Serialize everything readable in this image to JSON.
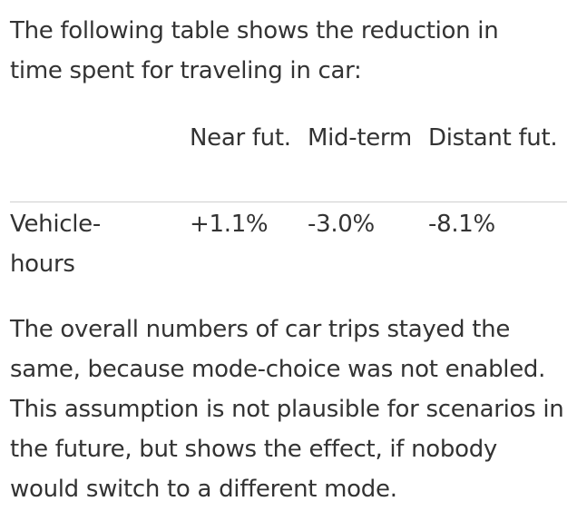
{
  "intro_text": "The following table shows the reduction in time spent for traveling in car:",
  "table": {
    "headers": [
      "",
      "Near fut.",
      "Mid-term",
      "Distant fut."
    ],
    "rows": [
      {
        "label": "Vehicle-hours",
        "values": [
          "+1.1%",
          "-3.0%",
          "-8.1%"
        ]
      }
    ]
  },
  "outro_text": "The overall numbers of car trips stayed the same, because mode-choice was not enabled. This assumption is not plausible for scenarios in the future, but shows the effect, if nobody would switch to a different mode."
}
